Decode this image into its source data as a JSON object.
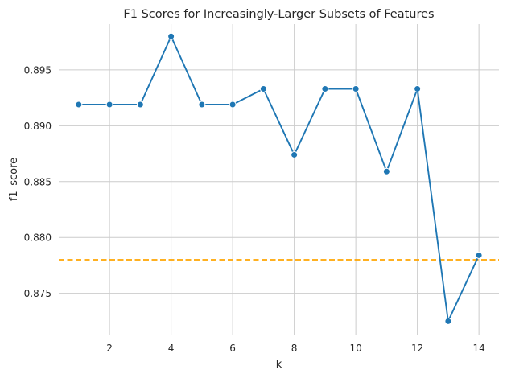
{
  "chart_data": {
    "type": "line",
    "title": "F1 Scores for Increasingly-Larger Subsets of Features",
    "xlabel": "k",
    "ylabel": "f1_score",
    "xlim": [
      0.35,
      14.65
    ],
    "ylim": [
      0.8713,
      0.8991
    ],
    "x_ticks": [
      2,
      4,
      6,
      8,
      10,
      12,
      14
    ],
    "x_tick_labels": [
      "2",
      "4",
      "6",
      "8",
      "10",
      "12",
      "14"
    ],
    "y_ticks": [
      0.875,
      0.88,
      0.885,
      0.89,
      0.895
    ],
    "y_tick_labels": [
      "0.875",
      "0.880",
      "0.885",
      "0.890",
      "0.895"
    ],
    "grid": true,
    "series": [
      {
        "x": [
          1,
          2,
          3,
          4,
          5,
          6,
          7,
          8,
          9,
          10,
          11,
          12,
          13,
          14
        ],
        "values": [
          0.8919,
          0.8919,
          0.8919,
          0.898,
          0.8919,
          0.8919,
          0.8933,
          0.8874,
          0.8933,
          0.8933,
          0.8859,
          0.8933,
          0.8725,
          0.8784
        ],
        "color": "#1f77b4",
        "marker": "circle"
      }
    ],
    "reference_lines": [
      {
        "orientation": "horizontal",
        "y": 0.878,
        "style": "dashed",
        "color": "#ffa500"
      }
    ]
  }
}
